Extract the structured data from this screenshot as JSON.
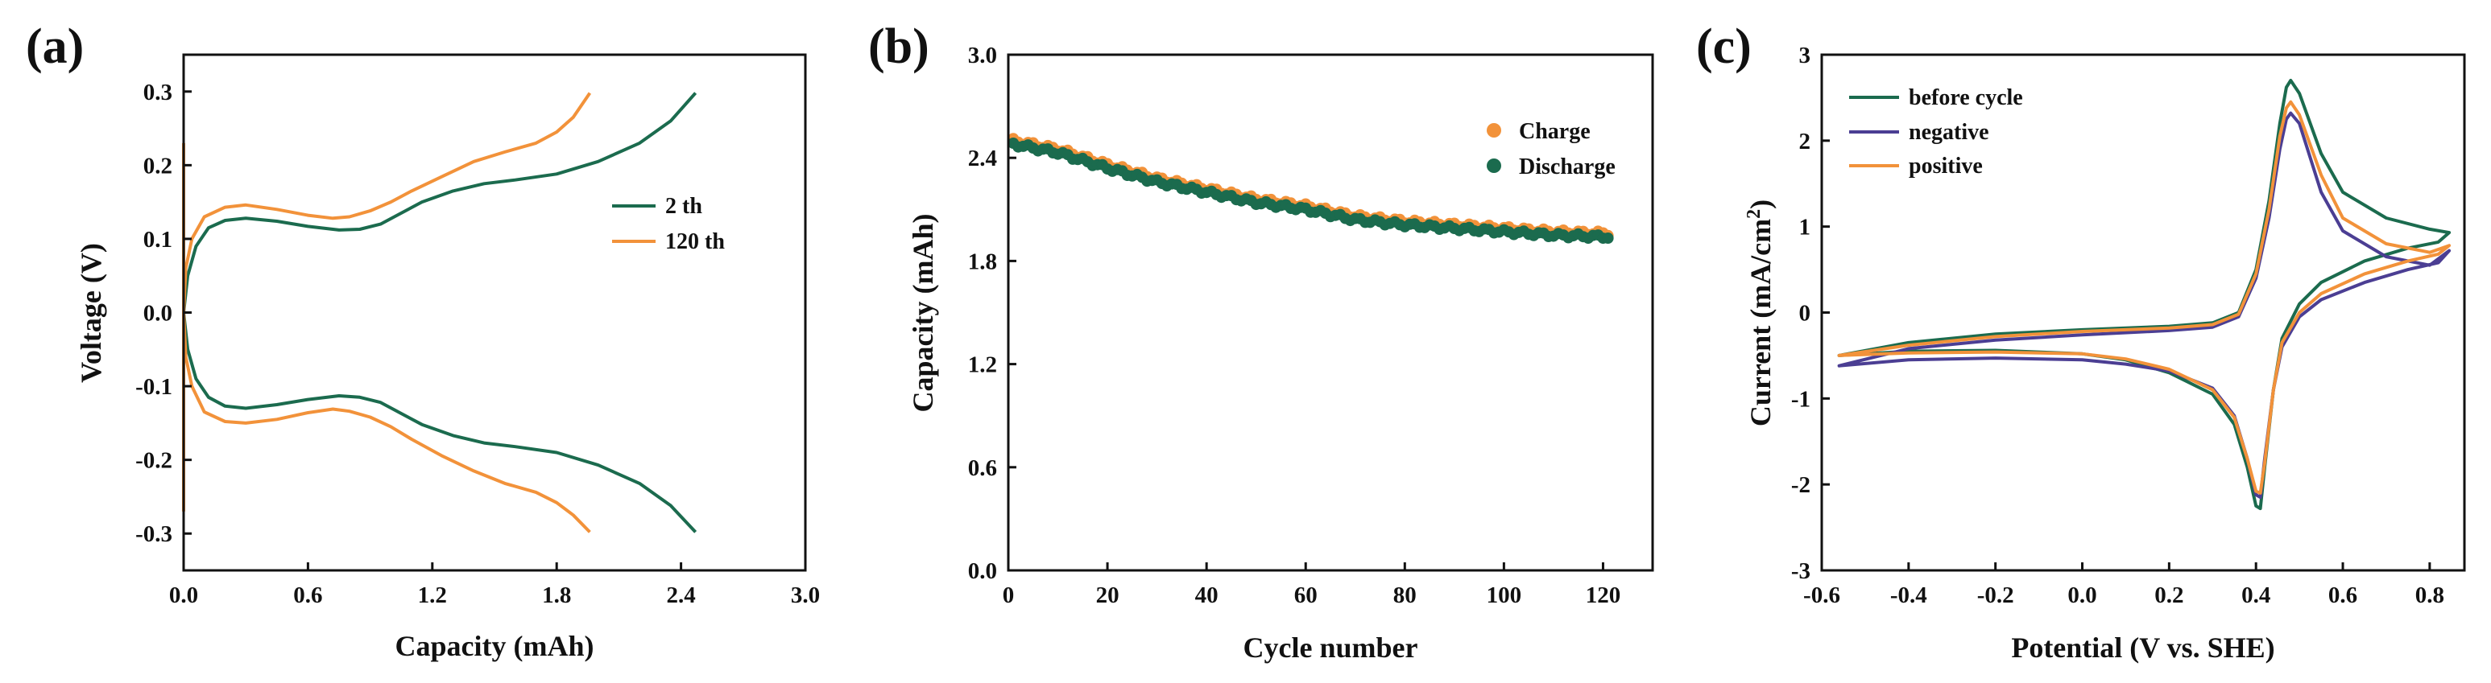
{
  "colors": {
    "green": "#1b6b4e",
    "orange": "#f2923a",
    "purple": "#4b3e93",
    "axis": "#111111"
  },
  "chart_data": [
    {
      "type": "line",
      "panel_label": "(a)",
      "xlabel": "Capacity (mAh)",
      "ylabel": "Voltage (V)",
      "xlim": [
        0.0,
        3.0
      ],
      "ylim": [
        -0.35,
        0.35
      ],
      "xticks": [
        "0.0",
        "0.6",
        "1.2",
        "1.8",
        "2.4",
        "3.0"
      ],
      "xtick_values": [
        0.0,
        0.6,
        1.2,
        1.8,
        2.4,
        3.0
      ],
      "yticks": [
        "-0.3",
        "-0.2",
        "-0.1",
        "0.0",
        "0.1",
        "0.2",
        "0.3"
      ],
      "ytick_values": [
        -0.3,
        -0.2,
        -0.1,
        0.0,
        0.1,
        0.2,
        0.3
      ],
      "legend": [
        "2 th",
        "120 th"
      ],
      "series": [
        {
          "name": "2 th",
          "color": "#1b6b4e",
          "charge": [
            [
              0.0,
              0.0
            ],
            [
              0.02,
              0.05
            ],
            [
              0.06,
              0.09
            ],
            [
              0.12,
              0.115
            ],
            [
              0.2,
              0.125
            ],
            [
              0.3,
              0.128
            ],
            [
              0.45,
              0.124
            ],
            [
              0.6,
              0.117
            ],
            [
              0.75,
              0.112
            ],
            [
              0.85,
              0.113
            ],
            [
              0.95,
              0.12
            ],
            [
              1.05,
              0.135
            ],
            [
              1.15,
              0.15
            ],
            [
              1.3,
              0.165
            ],
            [
              1.45,
              0.175
            ],
            [
              1.6,
              0.18
            ],
            [
              1.8,
              0.188
            ],
            [
              2.0,
              0.205
            ],
            [
              2.2,
              0.23
            ],
            [
              2.35,
              0.26
            ],
            [
              2.47,
              0.298
            ]
          ],
          "discharge": [
            [
              0.0,
              0.0
            ],
            [
              0.02,
              -0.05
            ],
            [
              0.06,
              -0.09
            ],
            [
              0.12,
              -0.115
            ],
            [
              0.2,
              -0.127
            ],
            [
              0.3,
              -0.13
            ],
            [
              0.45,
              -0.125
            ],
            [
              0.6,
              -0.118
            ],
            [
              0.75,
              -0.113
            ],
            [
              0.85,
              -0.115
            ],
            [
              0.95,
              -0.122
            ],
            [
              1.05,
              -0.137
            ],
            [
              1.15,
              -0.152
            ],
            [
              1.3,
              -0.167
            ],
            [
              1.45,
              -0.177
            ],
            [
              1.6,
              -0.182
            ],
            [
              1.8,
              -0.19
            ],
            [
              2.0,
              -0.207
            ],
            [
              2.2,
              -0.232
            ],
            [
              2.35,
              -0.262
            ],
            [
              2.47,
              -0.298
            ]
          ]
        },
        {
          "name": "120 th",
          "color": "#f2923a",
          "charge": [
            [
              0.0,
              0.23
            ],
            [
              0.0,
              0.0
            ],
            [
              0.01,
              0.06
            ],
            [
              0.04,
              0.1
            ],
            [
              0.1,
              0.13
            ],
            [
              0.2,
              0.143
            ],
            [
              0.3,
              0.146
            ],
            [
              0.45,
              0.14
            ],
            [
              0.6,
              0.132
            ],
            [
              0.72,
              0.128
            ],
            [
              0.8,
              0.13
            ],
            [
              0.9,
              0.138
            ],
            [
              1.0,
              0.15
            ],
            [
              1.1,
              0.165
            ],
            [
              1.25,
              0.185
            ],
            [
              1.4,
              0.205
            ],
            [
              1.55,
              0.218
            ],
            [
              1.7,
              0.23
            ],
            [
              1.8,
              0.245
            ],
            [
              1.88,
              0.265
            ],
            [
              1.96,
              0.298
            ]
          ],
          "discharge": [
            [
              0.0,
              -0.27
            ],
            [
              0.0,
              0.0
            ],
            [
              0.01,
              -0.06
            ],
            [
              0.04,
              -0.1
            ],
            [
              0.1,
              -0.135
            ],
            [
              0.2,
              -0.148
            ],
            [
              0.3,
              -0.15
            ],
            [
              0.45,
              -0.145
            ],
            [
              0.6,
              -0.136
            ],
            [
              0.72,
              -0.131
            ],
            [
              0.8,
              -0.134
            ],
            [
              0.9,
              -0.142
            ],
            [
              1.0,
              -0.155
            ],
            [
              1.1,
              -0.172
            ],
            [
              1.25,
              -0.195
            ],
            [
              1.4,
              -0.215
            ],
            [
              1.55,
              -0.232
            ],
            [
              1.7,
              -0.244
            ],
            [
              1.8,
              -0.258
            ],
            [
              1.88,
              -0.275
            ],
            [
              1.96,
              -0.298
            ]
          ]
        }
      ]
    },
    {
      "type": "scatter",
      "panel_label": "(b)",
      "xlabel": "Cycle number",
      "ylabel": "Capacity (mAh)",
      "xlim": [
        0,
        130
      ],
      "ylim": [
        0.0,
        3.0
      ],
      "xticks": [
        "0",
        "20",
        "40",
        "60",
        "80",
        "100",
        "120"
      ],
      "xtick_values": [
        0,
        20,
        40,
        60,
        80,
        100,
        120
      ],
      "yticks": [
        "0.0",
        "0.6",
        "1.2",
        "1.8",
        "2.4",
        "3.0"
      ],
      "ytick_values": [
        0.0,
        0.6,
        1.2,
        1.8,
        2.4,
        3.0
      ],
      "legend": [
        "Charge",
        "Discharge"
      ],
      "cycles": [
        1,
        121
      ],
      "series": [
        {
          "name": "Charge",
          "color": "#f2923a",
          "trend": [
            [
              1,
              2.5
            ],
            [
              10,
              2.45
            ],
            [
              20,
              2.36
            ],
            [
              30,
              2.28
            ],
            [
              40,
              2.22
            ],
            [
              50,
              2.16
            ],
            [
              60,
              2.12
            ],
            [
              70,
              2.06
            ],
            [
              80,
              2.03
            ],
            [
              90,
              2.01
            ],
            [
              100,
              1.99
            ],
            [
              110,
              1.97
            ],
            [
              121,
              1.96
            ]
          ]
        },
        {
          "name": "Discharge",
          "color": "#1b6b4e",
          "trend": [
            [
              1,
              2.48
            ],
            [
              10,
              2.43
            ],
            [
              20,
              2.34
            ],
            [
              30,
              2.26
            ],
            [
              40,
              2.2
            ],
            [
              50,
              2.14
            ],
            [
              60,
              2.1
            ],
            [
              70,
              2.04
            ],
            [
              80,
              2.01
            ],
            [
              90,
              1.99
            ],
            [
              100,
              1.97
            ],
            [
              110,
              1.95
            ],
            [
              121,
              1.94
            ]
          ]
        }
      ]
    },
    {
      "type": "line",
      "panel_label": "(c)",
      "xlabel": "Potential (V vs. SHE)",
      "ylabel_main": "Current (mA/cm",
      "ylabel_sup": "2",
      "ylabel_end": ")",
      "xlim": [
        -0.6,
        0.88
      ],
      "ylim": [
        -3.0,
        3.0
      ],
      "xticks": [
        "-0.6",
        "-0.4",
        "-0.2",
        "0.0",
        "0.2",
        "0.4",
        "0.6",
        "0.8"
      ],
      "xtick_values": [
        -0.6,
        -0.4,
        -0.2,
        0.0,
        0.2,
        0.4,
        0.6,
        0.8
      ],
      "yticks": [
        "-3",
        "-2",
        "-1",
        "0",
        "1",
        "2",
        "3"
      ],
      "ytick_values": [
        -3,
        -2,
        -1,
        0,
        1,
        2,
        3
      ],
      "legend": [
        "before cycle",
        "negative",
        "positive"
      ],
      "series": [
        {
          "name": "before cycle",
          "color": "#1b6b4e",
          "points": [
            [
              -0.56,
              -0.5
            ],
            [
              -0.4,
              -0.35
            ],
            [
              -0.2,
              -0.25
            ],
            [
              0.0,
              -0.2
            ],
            [
              0.2,
              -0.16
            ],
            [
              0.3,
              -0.12
            ],
            [
              0.36,
              0.0
            ],
            [
              0.4,
              0.5
            ],
            [
              0.43,
              1.3
            ],
            [
              0.455,
              2.2
            ],
            [
              0.47,
              2.62
            ],
            [
              0.48,
              2.7
            ],
            [
              0.5,
              2.55
            ],
            [
              0.55,
              1.85
            ],
            [
              0.6,
              1.4
            ],
            [
              0.7,
              1.1
            ],
            [
              0.8,
              0.97
            ],
            [
              0.845,
              0.93
            ],
            [
              0.82,
              0.82
            ],
            [
              0.75,
              0.75
            ],
            [
              0.65,
              0.6
            ],
            [
              0.55,
              0.35
            ],
            [
              0.5,
              0.1
            ],
            [
              0.46,
              -0.3
            ],
            [
              0.44,
              -0.9
            ],
            [
              0.42,
              -1.8
            ],
            [
              0.41,
              -2.28
            ],
            [
              0.4,
              -2.25
            ],
            [
              0.38,
              -1.8
            ],
            [
              0.35,
              -1.3
            ],
            [
              0.3,
              -0.95
            ],
            [
              0.2,
              -0.7
            ],
            [
              0.1,
              -0.55
            ],
            [
              0.0,
              -0.48
            ],
            [
              -0.2,
              -0.44
            ],
            [
              -0.4,
              -0.45
            ],
            [
              -0.56,
              -0.5
            ]
          ]
        },
        {
          "name": "negative",
          "color": "#4b3e93",
          "points": [
            [
              -0.56,
              -0.62
            ],
            [
              -0.4,
              -0.42
            ],
            [
              -0.2,
              -0.32
            ],
            [
              0.0,
              -0.26
            ],
            [
              0.2,
              -0.21
            ],
            [
              0.3,
              -0.17
            ],
            [
              0.36,
              -0.05
            ],
            [
              0.4,
              0.4
            ],
            [
              0.43,
              1.1
            ],
            [
              0.455,
              1.9
            ],
            [
              0.47,
              2.25
            ],
            [
              0.48,
              2.32
            ],
            [
              0.5,
              2.2
            ],
            [
              0.55,
              1.4
            ],
            [
              0.6,
              0.95
            ],
            [
              0.7,
              0.65
            ],
            [
              0.8,
              0.55
            ],
            [
              0.845,
              0.72
            ],
            [
              0.82,
              0.58
            ],
            [
              0.75,
              0.5
            ],
            [
              0.65,
              0.35
            ],
            [
              0.55,
              0.15
            ],
            [
              0.5,
              -0.05
            ],
            [
              0.46,
              -0.4
            ],
            [
              0.44,
              -0.9
            ],
            [
              0.42,
              -1.7
            ],
            [
              0.41,
              -2.15
            ],
            [
              0.4,
              -2.12
            ],
            [
              0.38,
              -1.7
            ],
            [
              0.35,
              -1.2
            ],
            [
              0.3,
              -0.88
            ],
            [
              0.2,
              -0.68
            ],
            [
              0.1,
              -0.6
            ],
            [
              0.0,
              -0.55
            ],
            [
              -0.2,
              -0.53
            ],
            [
              -0.4,
              -0.55
            ],
            [
              -0.56,
              -0.62
            ]
          ]
        },
        {
          "name": "positive",
          "color": "#f2923a",
          "points": [
            [
              -0.56,
              -0.5
            ],
            [
              -0.4,
              -0.38
            ],
            [
              -0.2,
              -0.28
            ],
            [
              0.0,
              -0.22
            ],
            [
              0.2,
              -0.18
            ],
            [
              0.3,
              -0.14
            ],
            [
              0.36,
              -0.02
            ],
            [
              0.4,
              0.45
            ],
            [
              0.43,
              1.2
            ],
            [
              0.455,
              2.05
            ],
            [
              0.47,
              2.38
            ],
            [
              0.48,
              2.45
            ],
            [
              0.5,
              2.3
            ],
            [
              0.55,
              1.6
            ],
            [
              0.6,
              1.1
            ],
            [
              0.7,
              0.8
            ],
            [
              0.8,
              0.7
            ],
            [
              0.845,
              0.78
            ],
            [
              0.82,
              0.68
            ],
            [
              0.75,
              0.6
            ],
            [
              0.65,
              0.45
            ],
            [
              0.55,
              0.22
            ],
            [
              0.5,
              0.0
            ],
            [
              0.46,
              -0.35
            ],
            [
              0.44,
              -0.9
            ],
            [
              0.42,
              -1.75
            ],
            [
              0.41,
              -2.1
            ],
            [
              0.4,
              -2.08
            ],
            [
              0.38,
              -1.7
            ],
            [
              0.35,
              -1.22
            ],
            [
              0.3,
              -0.9
            ],
            [
              0.2,
              -0.66
            ],
            [
              0.1,
              -0.54
            ],
            [
              0.0,
              -0.48
            ],
            [
              -0.2,
              -0.46
            ],
            [
              -0.4,
              -0.47
            ],
            [
              -0.56,
              -0.5
            ]
          ]
        }
      ]
    }
  ]
}
